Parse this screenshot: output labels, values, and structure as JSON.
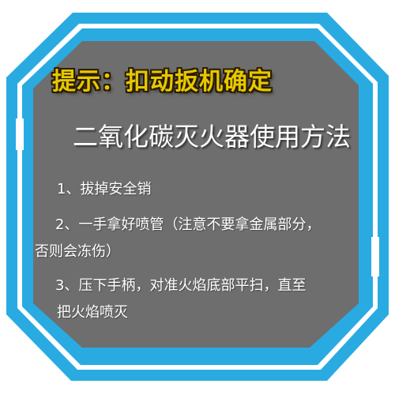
{
  "hint": "提示：扣动扳机确定",
  "title": "二氧化碳灭火器使用方法",
  "steps": {
    "s1": "1、拔掉安全销",
    "s2_line1": "2、一手拿好喷管（注意不要拿金属部分，",
    "s2_line2": "否则会冻伤）",
    "s3_line1": "3、压下手柄，对准火焰底部平扫，直至",
    "s3_line2": "把火焰喷灭"
  },
  "colors": {
    "frame": "#29abe2",
    "panel": "#6e6e6e",
    "hint_text": "#e6c800",
    "body_text": "#ffffff"
  }
}
